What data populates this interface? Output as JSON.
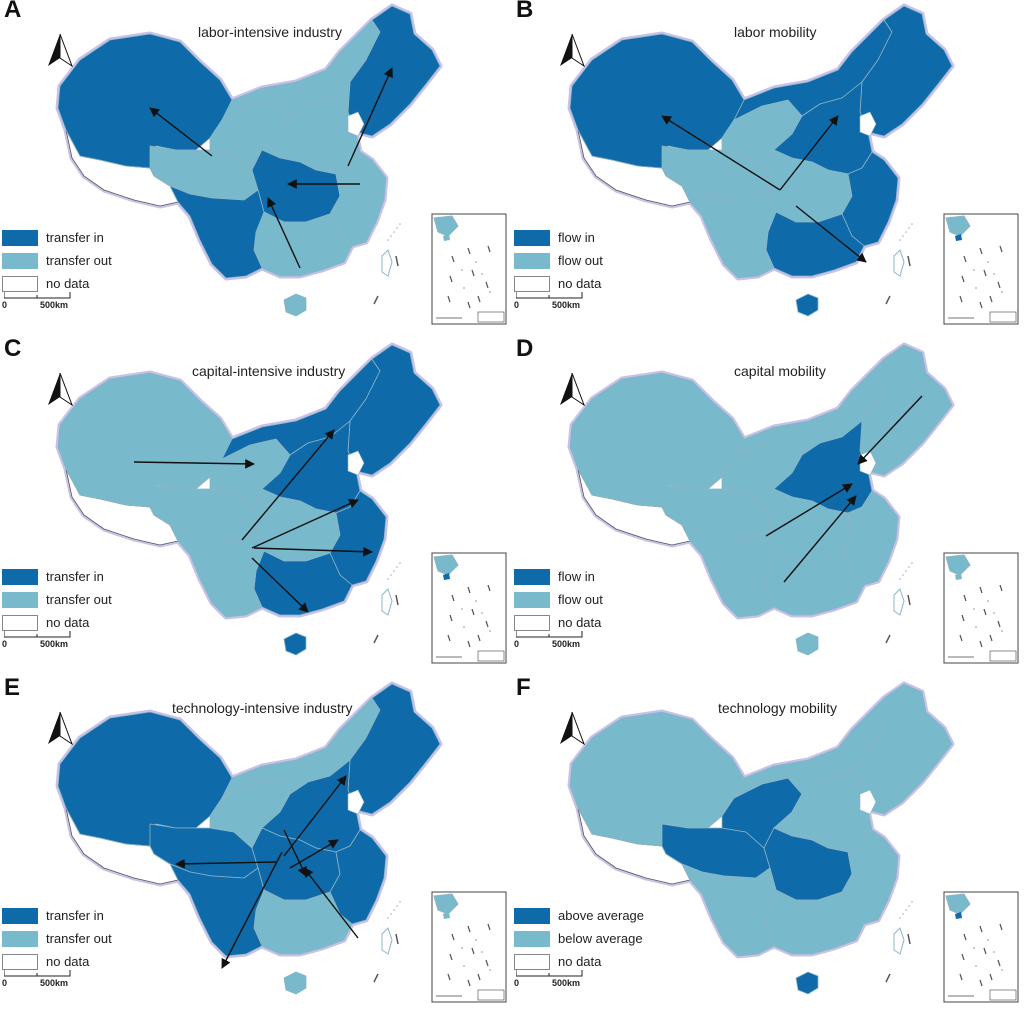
{
  "colors": {
    "dark": "#0e6aa9",
    "light": "#78b9cc",
    "border": "#8db4c6",
    "arrow": "#111111",
    "halo": "#c9c2e8"
  },
  "panels": [
    {
      "letter": "A",
      "title": "labor-intensive industry",
      "legend": [
        "transfer in",
        "transfer out",
        "no data"
      ],
      "scale": {
        "zero": "0",
        "km": "500km"
      },
      "regions": {
        "northwest": "dark",
        "qinghai": "light",
        "gansu": "light",
        "innermongolia": "light",
        "northeast": "dark",
        "north": "light",
        "central": "dark",
        "east": "light",
        "south": "light",
        "southwest": "dark",
        "hainan": "light"
      }
    },
    {
      "letter": "B",
      "title": "labor mobility",
      "legend": [
        "flow in",
        "flow out",
        "no data"
      ],
      "scale": {
        "zero": "0",
        "km": "500km"
      },
      "regions": {
        "northwest": "dark",
        "qinghai": "light",
        "gansu": "light",
        "innermongolia": "dark",
        "northeast": "dark",
        "north": "dark",
        "central": "light",
        "east": "dark",
        "south": "dark",
        "southwest": "light",
        "hainan": "dark"
      }
    },
    {
      "letter": "C",
      "title": "capital-intensive industry",
      "legend": [
        "transfer in",
        "transfer out",
        "no data"
      ],
      "scale": {
        "zero": "0",
        "km": "500km"
      },
      "regions": {
        "northwest": "light",
        "qinghai": "light",
        "gansu": "light",
        "innermongolia": "dark",
        "northeast": "dark",
        "north": "dark",
        "central": "light",
        "east": "dark",
        "south": "dark",
        "southwest": "light",
        "hainan": "dark"
      }
    },
    {
      "letter": "D",
      "title": "capital mobility",
      "legend": [
        "flow in",
        "flow out",
        "no data"
      ],
      "scale": {
        "zero": "0",
        "km": "500km"
      },
      "regions": {
        "northwest": "light",
        "qinghai": "light",
        "gansu": "light",
        "innermongolia": "light",
        "northeast": "light",
        "north": "dark",
        "central": "light",
        "east": "light",
        "south": "light",
        "southwest": "light",
        "hainan": "light"
      }
    },
    {
      "letter": "E",
      "title": "technology-intensive industry",
      "legend": [
        "transfer in",
        "transfer out",
        "no data"
      ],
      "scale": {
        "zero": "0",
        "km": "500km"
      },
      "regions": {
        "northwest": "dark",
        "qinghai": "dark",
        "gansu": "light",
        "innermongolia": "light",
        "northeast": "dark",
        "north": "dark",
        "central": "dark",
        "east": "dark",
        "south": "light",
        "southwest": "dark",
        "hainan": "light"
      }
    },
    {
      "letter": "F",
      "title": "technology mobility",
      "legend": [
        "above average",
        "below average",
        "no data"
      ],
      "scale": {
        "zero": "0",
        "km": "500km"
      },
      "regions": {
        "northwest": "light",
        "qinghai": "dark",
        "gansu": "dark",
        "innermongolia": "light",
        "northeast": "light",
        "north": "light",
        "central": "dark",
        "east": "light",
        "south": "light",
        "southwest": "light",
        "hainan": "dark"
      }
    }
  ]
}
